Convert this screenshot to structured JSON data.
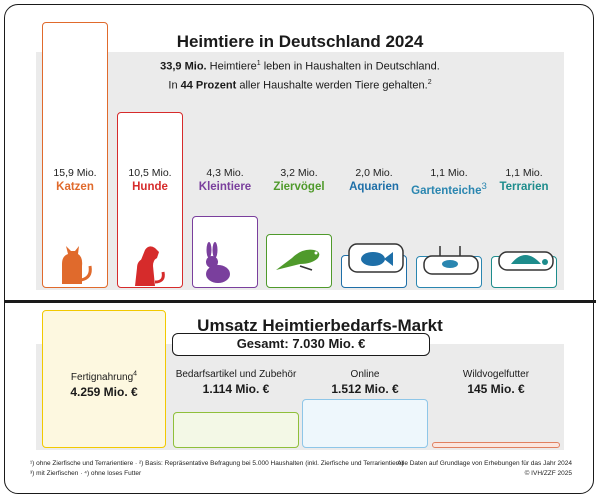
{
  "top": {
    "title": "Heimtiere in Deutschland 2024",
    "subtitle_line1_value": "33,9 Mio.",
    "subtitle_line1_word": "Heimtiere",
    "subtitle_line1_sup": "1",
    "subtitle_line1_rest": "leben in Haushalten in Deutschland.",
    "subtitle_line2_pre": "In",
    "subtitle_line2_value": "44 Prozent",
    "subtitle_line2_rest": "aller Haushalte werden Tiere gehalten.",
    "subtitle_line2_sup": "2"
  },
  "bottom": {
    "title": "Umsatz Heimtierbedarfs-Markt",
    "total": "Gesamt: 7.030 Mio. €"
  },
  "chart_data": [
    {
      "type": "bar",
      "title": "Heimtiere in Deutschland 2024",
      "unit": "Mio.",
      "categories": [
        "Katzen",
        "Hunde",
        "Kleintiere",
        "Ziervögel",
        "Aquarien",
        "Gartenteiche",
        "Terrarien"
      ],
      "values": [
        15.9,
        10.5,
        4.3,
        3.2,
        2.0,
        1.1,
        1.1
      ],
      "value_labels": [
        "15,9 Mio.",
        "10,5 Mio.",
        "4,3 Mio.",
        "3,2 Mio.",
        "2,0 Mio.",
        "1,1 Mio.",
        "1,1 Mio."
      ],
      "category_superscripts": [
        "",
        "",
        "",
        "",
        "",
        "3",
        ""
      ],
      "colors": [
        "#e06a2c",
        "#d62b2b",
        "#7a3f9d",
        "#4f9a2b",
        "#1e6fa8",
        "#2a86b0",
        "#1d8c8c"
      ],
      "icons": [
        "cat-icon",
        "dog-icon",
        "rabbit-icon",
        "bird-icon",
        "fish-icon",
        "pond-fish-icon",
        "turtle-icon"
      ]
    },
    {
      "type": "bar",
      "title": "Umsatz Heimtierbedarfs-Markt",
      "unit": "Mio. €",
      "categories": [
        "Fertignahrung",
        "Bedarfsartikel und Zubehör",
        "Online",
        "Wildvogelfutter"
      ],
      "category_superscripts": [
        "4",
        "",
        "",
        ""
      ],
      "values": [
        4259,
        1114,
        1512,
        145
      ],
      "value_labels": [
        "4.259 Mio. €",
        "1.114 Mio. €",
        "1.512 Mio. €",
        "145 Mio. €"
      ],
      "colors": [
        "#f2c900",
        "#8fbf3a",
        "#8ec6e8",
        "#e08060"
      ],
      "fills": [
        "#fdf8e0",
        "#f3f8e6",
        "#eef7fc",
        "#fbe6df"
      ]
    }
  ],
  "footnotes": {
    "left_line1": "¹) ohne Zierfische und Terrarientiere · ²) Basis: Repräsentative Befragung bei 5.000 Haushalten (inkl. Zierfische und Terrarientiere)",
    "left_line2": "³) mit Zierfischen · ⁴) ohne loses Futter",
    "right_line1": "Alle Daten auf Grundlage von Erhebungen für das Jahr 2024",
    "right_line2": "© IVH/ZZF 2025"
  }
}
